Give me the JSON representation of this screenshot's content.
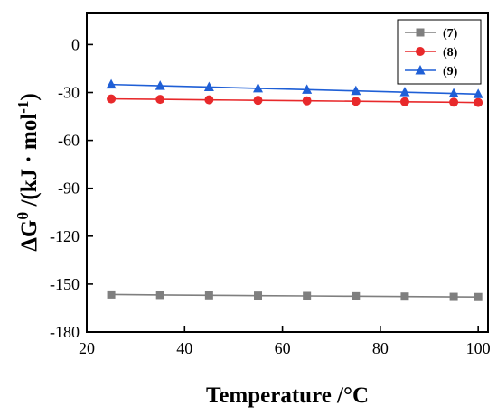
{
  "chart_data": {
    "type": "line",
    "xlabel": "Temperature /°C",
    "ylabel": "ΔGθ /(kJ · mol-1)",
    "ylabel_parts": {
      "main": "ΔG",
      "sup": "θ",
      "mid": " /(kJ · mol",
      "sup2": "-1",
      "end": ")"
    },
    "xlim": [
      20,
      102
    ],
    "ylim": [
      -180,
      20
    ],
    "xticks": [
      20,
      40,
      60,
      80,
      100
    ],
    "yticks": [
      0,
      -30,
      -60,
      -90,
      -120,
      -150,
      -180
    ],
    "grid": false,
    "legend_position": "top-right",
    "x": [
      25,
      35,
      45,
      55,
      65,
      75,
      85,
      95,
      100
    ],
    "series": [
      {
        "name": "(7)",
        "color": "#7f7f7f",
        "marker": "square",
        "values": [
          -156.5,
          -156.8,
          -157.0,
          -157.2,
          -157.4,
          -157.6,
          -157.8,
          -158.0,
          -158.1
        ]
      },
      {
        "name": "(8)",
        "color": "#e8292b",
        "marker": "circle",
        "values": [
          -34.0,
          -34.3,
          -34.6,
          -34.9,
          -35.2,
          -35.5,
          -35.8,
          -36.1,
          -36.3
        ]
      },
      {
        "name": "(9)",
        "color": "#1f5fd6",
        "marker": "triangle",
        "values": [
          -25.0,
          -25.8,
          -26.6,
          -27.4,
          -28.2,
          -29.0,
          -29.8,
          -30.6,
          -31.0
        ]
      }
    ]
  }
}
